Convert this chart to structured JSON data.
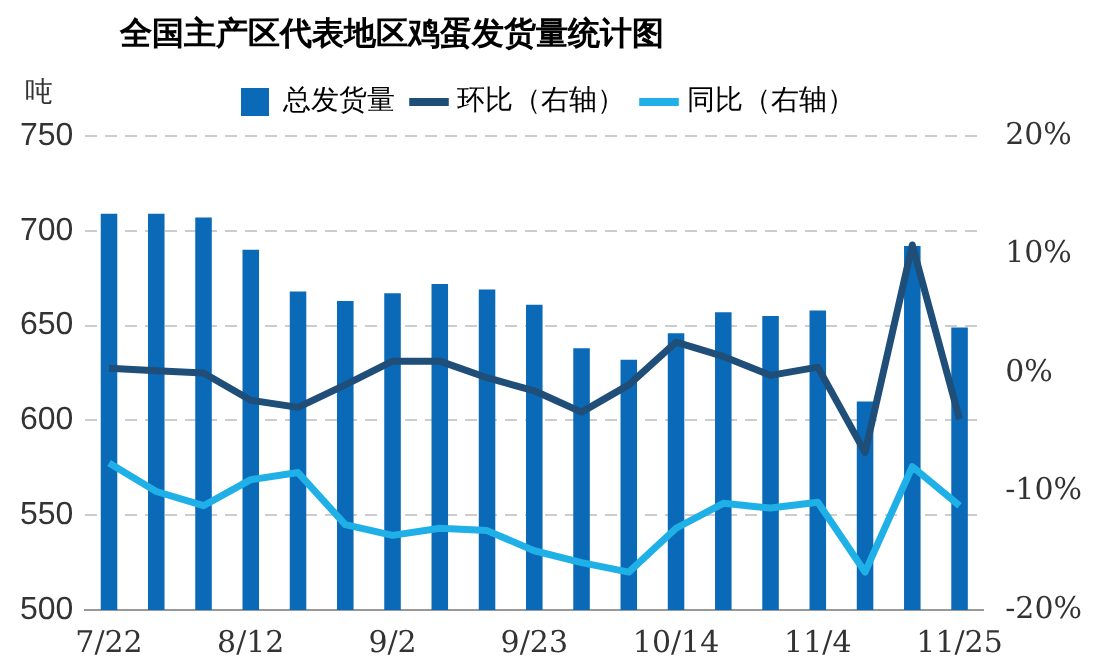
{
  "chart_data": {
    "type": "bar",
    "title": "全国主产区代表地区鸡蛋发货量统计图",
    "ylabel": "吨",
    "categories": [
      "7/22",
      null,
      null,
      "8/12",
      null,
      null,
      "9/2",
      null,
      null,
      "9/23",
      null,
      null,
      "10/14",
      null,
      null,
      "11/4",
      null,
      null,
      "11/25"
    ],
    "series": [
      {
        "name": "总发货量",
        "color": "#0a6ab8",
        "values": [
          709,
          709,
          707,
          690,
          668,
          663,
          667,
          672,
          669,
          661,
          638,
          632,
          646,
          657,
          655,
          658,
          610,
          692,
          649
        ]
      },
      {
        "name": "环比（右轴）",
        "type": "line",
        "axis": "y2",
        "color": "#1f4e79",
        "values": [
          0.4,
          0.2,
          0,
          -2.3,
          -2.9,
          -1,
          1,
          1,
          -0.4,
          -1.5,
          -3.3,
          -1,
          2.6,
          1.4,
          -0.2,
          0.5,
          -6.7,
          10.8,
          -3.9
        ]
      },
      {
        "name": "同比（右轴）",
        "type": "line",
        "axis": "y2",
        "color": "#1fb0e8",
        "values": [
          -7.6,
          -10,
          -11.2,
          -9,
          -8.4,
          -12.8,
          -13.7,
          -13.1,
          -13.3,
          -15,
          -16,
          -16.8,
          -13.1,
          -11,
          -11.4,
          -10.9,
          -16.8,
          -7.9,
          -11.2
        ]
      }
    ],
    "ylim": [
      500,
      750
    ],
    "yticks": [
      500,
      550,
      600,
      650,
      700,
      750
    ],
    "y2lim": [
      -20,
      20
    ],
    "y2ticks": [
      {
        "value": -20,
        "label": "-20%"
      },
      {
        "value": -10,
        "label": "-10%"
      },
      {
        "value": 0,
        "label": "0%"
      },
      {
        "value": 10,
        "label": "10%"
      },
      {
        "value": 20,
        "label": "20%"
      }
    ],
    "grid": "y",
    "legend": "top",
    "marker": "none",
    "line_style": "solid"
  }
}
